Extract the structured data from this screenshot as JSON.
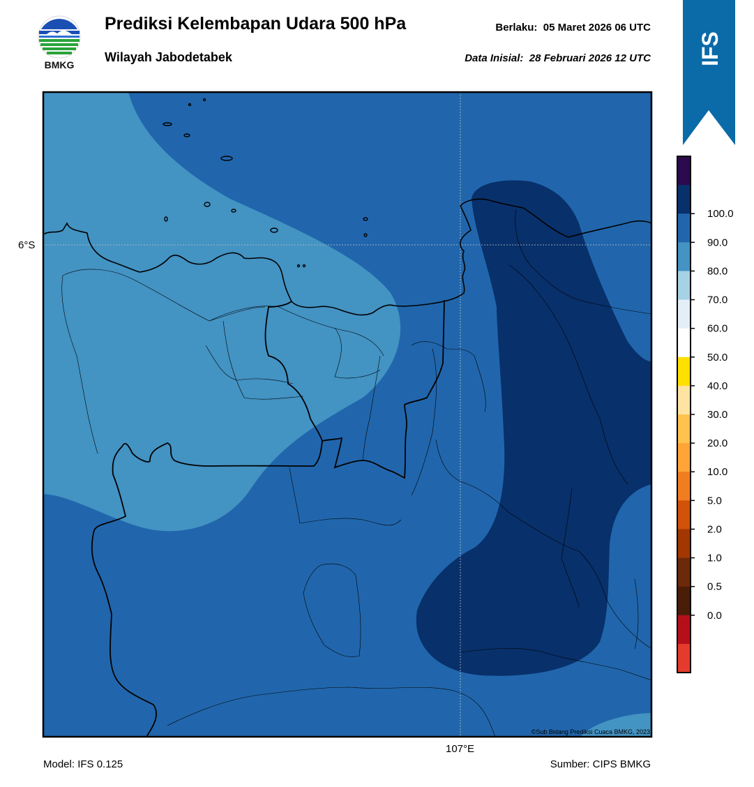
{
  "header": {
    "logo_text": "BMKG",
    "title": "Prediksi Kelembapan Udara 500 hPa",
    "subtitle": "Wilayah Jabodetabek",
    "valid_label": "Berlaku:",
    "valid_value": "05 Maret 2026 06 UTC",
    "init_label": "Data Inisial:",
    "init_value": "28 Februari 2026 12 UTC",
    "model_badge": "IFS"
  },
  "map": {
    "lat_label": "6°S",
    "lon_label": "107°E",
    "copyright": "©Sub Bidang Prediksi Cuaca BMKG, 2023"
  },
  "footer": {
    "model": "Model: IFS 0.125",
    "source": "Sumber: CIPS BMKG"
  },
  "legend": {
    "ticks": [
      "100.0",
      "90.0",
      "80.0",
      "70.0",
      "60.0",
      "50.0",
      "40.0",
      "30.0",
      "20.0",
      "10.0",
      "5.0",
      "2.0",
      "1.0",
      "0.5",
      "0.0"
    ],
    "colors_top_to_bottom": [
      "#2b0a4e",
      "#08306b",
      "#2166ac",
      "#4393c3",
      "#a6d2e5",
      "#e3eef6",
      "#ffffff",
      "#ffe000",
      "#ffe3a2",
      "#ffc24f",
      "#ffa538",
      "#f17d21",
      "#d15208",
      "#a23703",
      "#6b2a0a",
      "#4a1d08",
      "#b5101a",
      "#e53b2c"
    ]
  },
  "colors": {
    "level_90_100": "#08306b",
    "level_80_90": "#2166ac",
    "level_70_80": "#4393c3",
    "badge_blue": "#0b6aa8"
  }
}
